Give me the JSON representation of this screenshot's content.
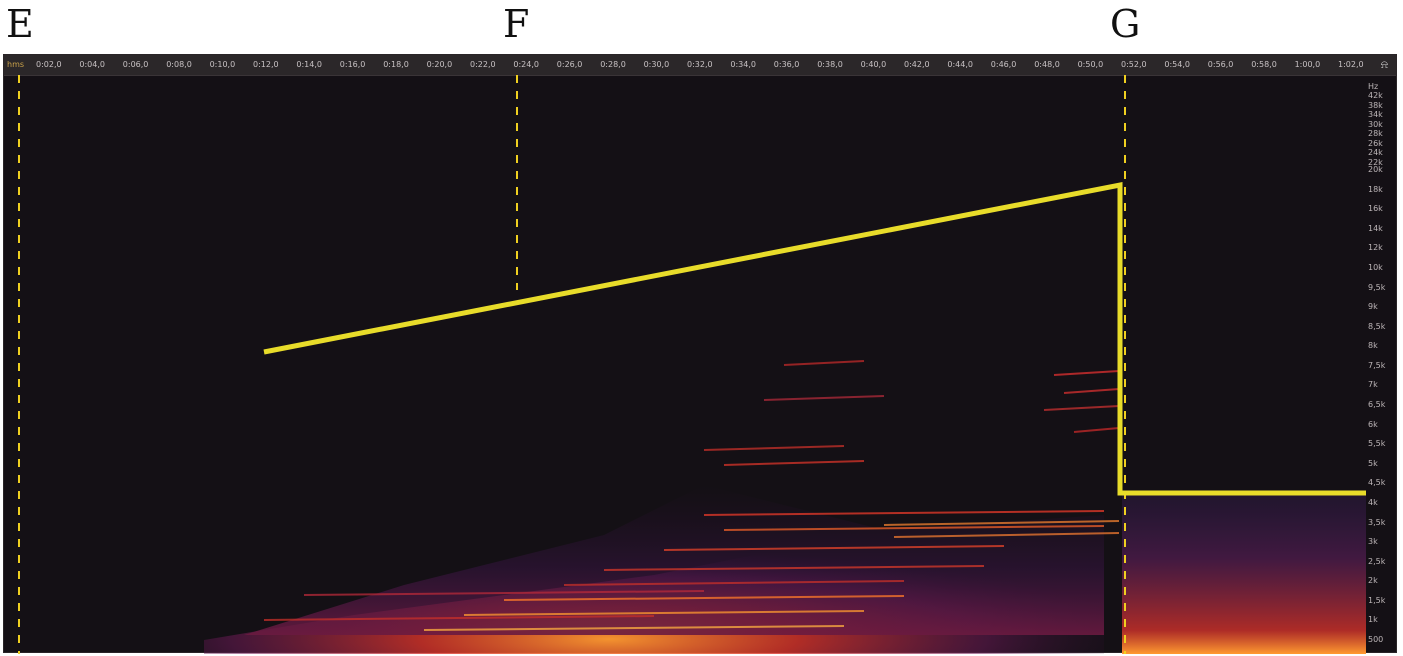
{
  "markers": [
    {
      "id": "E",
      "label": "E",
      "time": 0.0
    },
    {
      "id": "F",
      "label": "F",
      "time": 0.23
    },
    {
      "id": "G",
      "label": "G",
      "time": 0.51
    }
  ],
  "ruler": {
    "unit": "hms",
    "labels": [
      "0:02,0",
      "0:04,0",
      "0:06,0",
      "0:08,0",
      "0:10,0",
      "0:12,0",
      "0:14,0",
      "0:16,0",
      "0:18,0",
      "0:20,0",
      "0:22,0",
      "0:24,0",
      "0:26,0",
      "0:28,0",
      "0:30,0",
      "0:32,0",
      "0:34,0",
      "0:36,0",
      "0:38,0",
      "0:40,0",
      "0:42,0",
      "0:44,0",
      "0:46,0",
      "0:48,0",
      "0:50,0",
      "0:52,0",
      "0:54,0",
      "0:56,0",
      "0:58,0",
      "1:00,0",
      "1:02,0"
    ],
    "icon": "headphones-icon"
  },
  "frequency_scale": {
    "unit": "Hz",
    "labels": [
      "42k",
      "38k",
      "34k",
      "30k",
      "28k",
      "26k",
      "24k",
      "22k",
      "20k",
      "18k",
      "16k",
      "14k",
      "12k",
      "10k",
      "9,5k",
      "9k",
      "8,5k",
      "8k",
      "7,5k",
      "7k",
      "6,5k",
      "6k",
      "5,5k",
      "5k",
      "4,5k",
      "4k",
      "3,5k",
      "3k",
      "2,5k",
      "2k",
      "1,5k",
      "1k",
      "500"
    ]
  },
  "colors": {
    "background": "#141015",
    "overlay": "#e8dc2a",
    "marker": "#f0d020",
    "energy_low": "#4a1860",
    "energy_mid": "#c8282a",
    "energy_high": "#ffb040"
  }
}
